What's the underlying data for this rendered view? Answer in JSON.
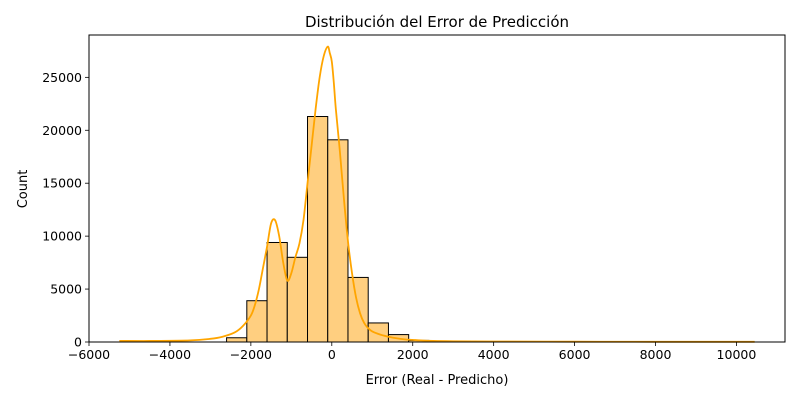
{
  "chart_data": {
    "type": "bar",
    "title": "Distribución del Error de Predicción",
    "xlabel": "Error (Real - Predicho)",
    "ylabel": "Count",
    "xlim": [
      -6000,
      11200
    ],
    "ylim": [
      0,
      29000
    ],
    "xticks": [
      -6000,
      -4000,
      -2000,
      0,
      2000,
      4000,
      6000,
      8000,
      10000
    ],
    "xtick_labels": [
      "−6000",
      "−4000",
      "−2000",
      "0",
      "2000",
      "4000",
      "6000",
      "8000",
      "10000"
    ],
    "yticks": [
      0,
      5000,
      10000,
      15000,
      20000,
      25000
    ],
    "ytick_labels": [
      "0",
      "5000",
      "10000",
      "15000",
      "20000",
      "25000"
    ],
    "grid": false,
    "bars": {
      "bin_edges": [
        -2600,
        -2100,
        -1600,
        -1100,
        -600,
        -100,
        400,
        900,
        1400,
        1900,
        2400
      ],
      "counts": [
        400,
        3900,
        9400,
        8000,
        21300,
        19100,
        6100,
        1800,
        700,
        150
      ]
    },
    "kde": {
      "x": [
        -5250,
        -4500,
        -3500,
        -3000,
        -2700,
        -2400,
        -2200,
        -2000,
        -1900,
        -1800,
        -1700,
        -1600,
        -1500,
        -1400,
        -1300,
        -1200,
        -1100,
        -1000,
        -900,
        -800,
        -700,
        -600,
        -500,
        -400,
        -300,
        -200,
        -100,
        -50,
        0,
        50,
        100,
        200,
        300,
        400,
        500,
        600,
        700,
        800,
        900,
        1000,
        1200,
        1400,
        1600,
        1800,
        2000,
        2200,
        2500,
        3000,
        4000,
        6000,
        8000,
        10450
      ],
      "y": [
        100,
        100,
        150,
        300,
        500,
        900,
        1500,
        2500,
        3500,
        5000,
        7000,
        9000,
        11200,
        11500,
        10000,
        7500,
        5800,
        6500,
        8000,
        9300,
        11500,
        15000,
        18500,
        22000,
        25000,
        27000,
        27900,
        27300,
        26500,
        24500,
        22000,
        18000,
        13500,
        9500,
        6500,
        4200,
        2700,
        1800,
        1300,
        1000,
        700,
        500,
        350,
        250,
        200,
        150,
        100,
        70,
        50,
        30,
        20,
        20
      ]
    },
    "colors": {
      "bar_fill": "#ffcf80",
      "bar_edge": "#000000",
      "kde_line": "#ffa500"
    }
  }
}
